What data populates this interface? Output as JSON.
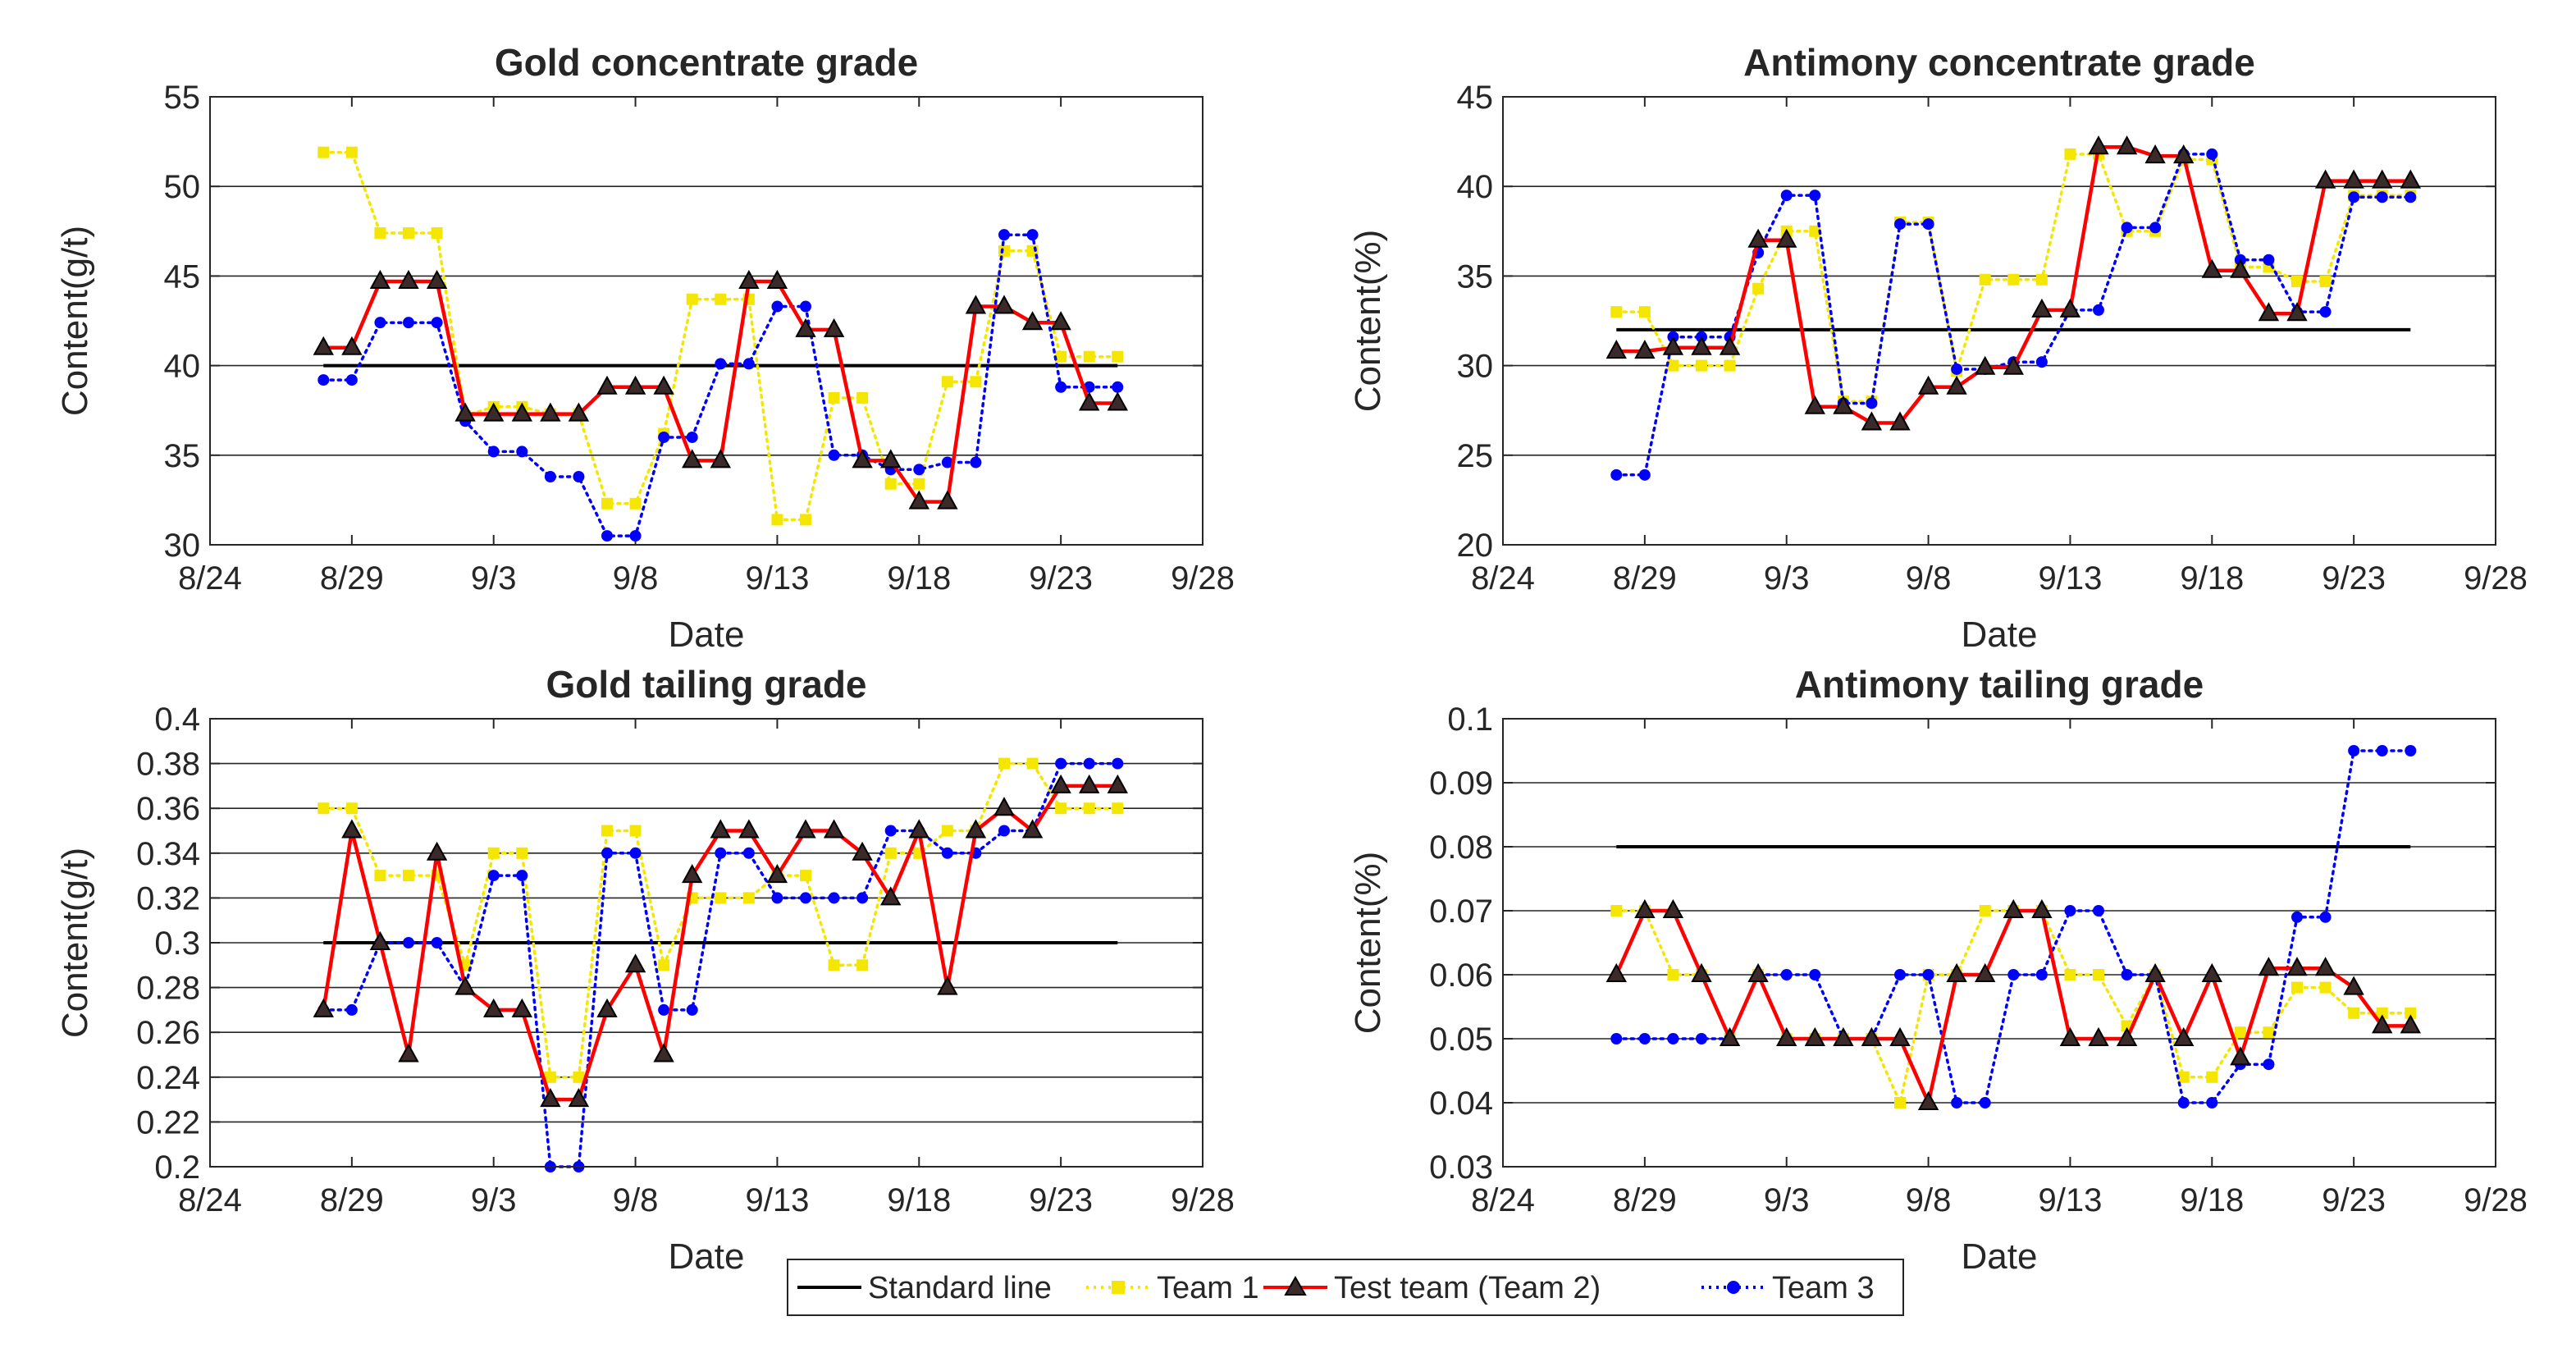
{
  "colors": {
    "standard": "#000000",
    "team1": "#f5e600",
    "team2": "#ff0000",
    "team3": "#0000ff",
    "grid": "#262626",
    "axis": "#262626"
  },
  "legend": {
    "standard": "Standard line",
    "team1": "Team 1",
    "team2": "Test team (Team 2)",
    "team3": "Team 3"
  },
  "chart_data": [
    {
      "type": "line",
      "title": "Gold concentrate grade",
      "xlabel": "Date",
      "ylabel": "Content(g/t)",
      "xlim": [
        0,
        35
      ],
      "ylim": [
        30,
        55
      ],
      "xtick_values": [
        0,
        5,
        10,
        15,
        20,
        25,
        30,
        35
      ],
      "xtick_labels": [
        "8/24",
        "8/29",
        "9/3",
        "9/8",
        "9/13",
        "9/18",
        "9/23",
        "9/28"
      ],
      "ytick_values": [
        30,
        35,
        40,
        45,
        50,
        55
      ],
      "ytick_labels": [
        "30",
        "35",
        "40",
        "45",
        "50",
        "55"
      ],
      "grid_values": [
        35,
        40,
        45,
        50
      ],
      "standard": {
        "x": [
          4,
          32
        ],
        "y": [
          40,
          40
        ]
      },
      "series": [
        {
          "key": "team1",
          "name": "Team 1",
          "x": [
            4,
            5,
            6,
            7,
            8,
            9,
            10,
            11,
            12,
            13,
            14,
            15,
            16,
            17,
            18,
            19,
            20,
            21,
            22,
            23,
            24,
            25,
            26,
            27,
            28,
            29,
            30,
            31,
            32
          ],
          "y": [
            51.9,
            51.9,
            47.4,
            47.4,
            47.4,
            37.2,
            37.7,
            37.7,
            37.3,
            37.3,
            32.3,
            32.3,
            36.2,
            43.7,
            43.7,
            43.7,
            31.4,
            31.4,
            38.2,
            38.2,
            33.4,
            33.4,
            39.1,
            39.1,
            46.4,
            46.4,
            40.5,
            40.5,
            40.5
          ]
        },
        {
          "key": "team2",
          "name": "Test team (Team 2)",
          "x": [
            4,
            5,
            6,
            7,
            8,
            9,
            10,
            11,
            12,
            13,
            14,
            15,
            16,
            17,
            18,
            19,
            20,
            21,
            22,
            23,
            24,
            25,
            26,
            27,
            28,
            29,
            30,
            31,
            32
          ],
          "y": [
            41,
            41,
            44.7,
            44.7,
            44.7,
            37.3,
            37.3,
            37.3,
            37.3,
            37.3,
            38.8,
            38.8,
            38.8,
            34.7,
            34.7,
            44.7,
            44.7,
            42,
            42,
            34.7,
            34.7,
            32.4,
            32.4,
            43.3,
            43.3,
            42.4,
            42.4,
            37.9,
            37.9
          ]
        },
        {
          "key": "team3",
          "name": "Team 3",
          "x": [
            4,
            5,
            6,
            7,
            8,
            9,
            10,
            11,
            12,
            13,
            14,
            15,
            16,
            17,
            18,
            19,
            20,
            21,
            22,
            23,
            24,
            25,
            26,
            27,
            28,
            29,
            30,
            31,
            32
          ],
          "y": [
            39.2,
            39.2,
            42.4,
            42.4,
            42.4,
            36.9,
            35.2,
            35.2,
            33.8,
            33.8,
            30.5,
            30.5,
            36,
            36,
            40.1,
            40.1,
            43.3,
            43.3,
            35,
            35,
            34.2,
            34.2,
            34.6,
            34.6,
            47.3,
            47.3,
            38.8,
            38.8,
            38.8
          ]
        }
      ]
    },
    {
      "type": "line",
      "title": "Antimony concentrate grade",
      "xlabel": "Date",
      "ylabel": "Content(%)",
      "xlim": [
        0,
        35
      ],
      "ylim": [
        20,
        45
      ],
      "xtick_values": [
        0,
        5,
        10,
        15,
        20,
        25,
        30,
        35
      ],
      "xtick_labels": [
        "8/24",
        "8/29",
        "9/3",
        "9/8",
        "9/13",
        "9/18",
        "9/23",
        "9/28"
      ],
      "ytick_values": [
        20,
        25,
        30,
        35,
        40,
        45
      ],
      "ytick_labels": [
        "20",
        "25",
        "30",
        "35",
        "40",
        "45"
      ],
      "grid_values": [
        25,
        30,
        35,
        40
      ],
      "standard": {
        "x": [
          4,
          32
        ],
        "y": [
          32,
          32
        ]
      },
      "series": [
        {
          "key": "team1",
          "name": "Team 1",
          "x": [
            4,
            5,
            6,
            7,
            8,
            9,
            10,
            11,
            12,
            13,
            14,
            15,
            16,
            17,
            18,
            19,
            20,
            21,
            22,
            23,
            24,
            25,
            26,
            27,
            28,
            29,
            30,
            31,
            32
          ],
          "y": [
            33,
            33,
            30,
            30,
            30,
            34.3,
            37.5,
            37.5,
            28,
            28,
            38,
            38,
            29.7,
            34.8,
            34.8,
            34.8,
            41.8,
            41.8,
            37.5,
            37.5,
            41.5,
            41.5,
            35.5,
            35.5,
            34.7,
            34.7,
            39.5,
            39.5,
            39.5
          ]
        },
        {
          "key": "team2",
          "name": "Test team (Team 2)",
          "x": [
            4,
            5,
            6,
            7,
            8,
            9,
            10,
            11,
            12,
            13,
            14,
            15,
            16,
            17,
            18,
            19,
            20,
            21,
            22,
            23,
            24,
            25,
            26,
            27,
            28,
            29,
            30,
            31,
            32
          ],
          "y": [
            30.8,
            30.8,
            31,
            31,
            31,
            37,
            37,
            27.7,
            27.7,
            26.8,
            26.8,
            28.8,
            28.8,
            29.9,
            29.9,
            33.1,
            33.1,
            42.2,
            42.2,
            41.7,
            41.7,
            35.3,
            35.3,
            32.9,
            32.9,
            40.3,
            40.3,
            40.3,
            40.3
          ]
        },
        {
          "key": "team3",
          "name": "Team 3",
          "x": [
            4,
            5,
            6,
            7,
            8,
            9,
            10,
            11,
            12,
            13,
            14,
            15,
            16,
            17,
            18,
            19,
            20,
            21,
            22,
            23,
            24,
            25,
            26,
            27,
            28,
            29,
            30,
            31,
            32
          ],
          "y": [
            23.9,
            23.9,
            31.6,
            31.6,
            31.6,
            36.3,
            39.5,
            39.5,
            27.9,
            27.9,
            37.9,
            37.9,
            29.8,
            29.8,
            30.2,
            30.2,
            33.1,
            33.1,
            37.7,
            37.7,
            41.8,
            41.8,
            35.9,
            35.9,
            33,
            33,
            39.4,
            39.4,
            39.4
          ]
        }
      ]
    },
    {
      "type": "line",
      "title": "Gold tailing grade",
      "xlabel": "Date",
      "ylabel": "Content(g/t)",
      "xlim": [
        0,
        35
      ],
      "ylim": [
        0.2,
        0.4
      ],
      "xtick_values": [
        0,
        5,
        10,
        15,
        20,
        25,
        30,
        35
      ],
      "xtick_labels": [
        "8/24",
        "8/29",
        "9/3",
        "9/8",
        "9/13",
        "9/18",
        "9/23",
        "9/28"
      ],
      "ytick_values": [
        0.2,
        0.22,
        0.24,
        0.26,
        0.28,
        0.3,
        0.32,
        0.34,
        0.36,
        0.38,
        0.4
      ],
      "ytick_labels": [
        "0.2",
        "0.22",
        "0.24",
        "0.26",
        "0.28",
        "0.3",
        "0.32",
        "0.34",
        "0.36",
        "0.38",
        "0.4"
      ],
      "grid_values": [
        0.22,
        0.24,
        0.26,
        0.28,
        0.3,
        0.32,
        0.34,
        0.36,
        0.38
      ],
      "standard": {
        "x": [
          4,
          32
        ],
        "y": [
          0.3,
          0.3
        ]
      },
      "series": [
        {
          "key": "team1",
          "name": "Team 1",
          "x": [
            4,
            5,
            6,
            7,
            8,
            9,
            10,
            11,
            12,
            13,
            14,
            15,
            16,
            17,
            18,
            19,
            20,
            21,
            22,
            23,
            24,
            25,
            26,
            27,
            28,
            29,
            30,
            31,
            32
          ],
          "y": [
            0.36,
            0.36,
            0.33,
            0.33,
            0.33,
            0.29,
            0.34,
            0.34,
            0.24,
            0.24,
            0.35,
            0.35,
            0.29,
            0.32,
            0.32,
            0.32,
            0.33,
            0.33,
            0.29,
            0.29,
            0.34,
            0.34,
            0.35,
            0.35,
            0.38,
            0.38,
            0.36,
            0.36,
            0.36
          ]
        },
        {
          "key": "team2",
          "name": "Test team (Team 2)",
          "x": [
            4,
            5,
            6,
            7,
            8,
            9,
            10,
            11,
            12,
            13,
            14,
            15,
            16,
            17,
            18,
            19,
            20,
            21,
            22,
            23,
            24,
            25,
            26,
            27,
            28,
            29,
            30,
            31,
            32
          ],
          "y": [
            0.27,
            0.35,
            0.3,
            0.25,
            0.34,
            0.28,
            0.27,
            0.27,
            0.23,
            0.23,
            0.27,
            0.29,
            0.25,
            0.33,
            0.35,
            0.35,
            0.33,
            0.35,
            0.35,
            0.34,
            0.32,
            0.35,
            0.28,
            0.35,
            0.36,
            0.35,
            0.37,
            0.37,
            0.37
          ]
        },
        {
          "key": "team3",
          "name": "Team 3",
          "x": [
            4,
            5,
            6,
            7,
            8,
            9,
            10,
            11,
            12,
            13,
            14,
            15,
            16,
            17,
            18,
            19,
            20,
            21,
            22,
            23,
            24,
            25,
            26,
            27,
            28,
            29,
            30,
            31,
            32
          ],
          "y": [
            0.27,
            0.27,
            0.3,
            0.3,
            0.3,
            0.28,
            0.33,
            0.33,
            0.2,
            0.2,
            0.34,
            0.34,
            0.27,
            0.27,
            0.34,
            0.34,
            0.32,
            0.32,
            0.32,
            0.32,
            0.35,
            0.35,
            0.34,
            0.34,
            0.35,
            0.35,
            0.38,
            0.38,
            0.38
          ]
        }
      ]
    },
    {
      "type": "line",
      "title": "Antimony tailing grade",
      "xlabel": "Date",
      "ylabel": "Content(%)",
      "xlim": [
        0,
        35
      ],
      "ylim": [
        0.03,
        0.1
      ],
      "xtick_values": [
        0,
        5,
        10,
        15,
        20,
        25,
        30,
        35
      ],
      "xtick_labels": [
        "8/24",
        "8/29",
        "9/3",
        "9/8",
        "9/13",
        "9/18",
        "9/23",
        "9/28"
      ],
      "ytick_values": [
        0.03,
        0.04,
        0.05,
        0.06,
        0.07,
        0.08,
        0.09,
        0.1
      ],
      "ytick_labels": [
        "0.03",
        "0.04",
        "0.05",
        "0.06",
        "0.07",
        "0.08",
        "0.09",
        "0.1"
      ],
      "grid_values": [
        0.04,
        0.05,
        0.06,
        0.07,
        0.08,
        0.09
      ],
      "standard": {
        "x": [
          4,
          32
        ],
        "y": [
          0.08,
          0.08
        ]
      },
      "series": [
        {
          "key": "team1",
          "name": "Team 1",
          "x": [
            4,
            5,
            6,
            7,
            8,
            9,
            10,
            11,
            12,
            13,
            14,
            15,
            16,
            17,
            18,
            19,
            20,
            21,
            22,
            23,
            24,
            25,
            26,
            27,
            28,
            29,
            30,
            31,
            32
          ],
          "y": [
            0.07,
            0.07,
            0.06,
            0.06,
            0.05,
            0.06,
            0.05,
            0.05,
            0.05,
            0.05,
            0.04,
            0.06,
            0.06,
            0.07,
            0.07,
            0.07,
            0.06,
            0.06,
            0.052,
            0.06,
            0.044,
            0.044,
            0.051,
            0.051,
            0.058,
            0.058,
            0.054,
            0.054,
            0.054
          ]
        },
        {
          "key": "team2",
          "name": "Test team (Team 2)",
          "x": [
            4,
            5,
            6,
            7,
            8,
            9,
            10,
            11,
            12,
            13,
            14,
            15,
            16,
            17,
            18,
            19,
            20,
            21,
            22,
            23,
            24,
            25,
            26,
            27,
            28,
            29,
            30,
            31,
            32
          ],
          "y": [
            0.06,
            0.07,
            0.07,
            0.06,
            0.05,
            0.06,
            0.05,
            0.05,
            0.05,
            0.05,
            0.05,
            0.04,
            0.06,
            0.06,
            0.07,
            0.07,
            0.05,
            0.05,
            0.05,
            0.06,
            0.05,
            0.06,
            0.047,
            0.061,
            0.061,
            0.061,
            0.058,
            0.052,
            0.052
          ]
        },
        {
          "key": "team3",
          "name": "Team 3",
          "x": [
            4,
            5,
            6,
            7,
            8,
            9,
            10,
            11,
            12,
            13,
            14,
            15,
            16,
            17,
            18,
            19,
            20,
            21,
            22,
            23,
            24,
            25,
            26,
            27,
            28,
            29,
            30,
            31,
            32
          ],
          "y": [
            0.05,
            0.05,
            0.05,
            0.05,
            0.05,
            0.06,
            0.06,
            0.06,
            0.05,
            0.05,
            0.06,
            0.06,
            0.04,
            0.04,
            0.06,
            0.06,
            0.07,
            0.07,
            0.06,
            0.06,
            0.04,
            0.04,
            0.046,
            0.046,
            0.069,
            0.069,
            0.095,
            0.095,
            0.095
          ]
        }
      ]
    }
  ]
}
